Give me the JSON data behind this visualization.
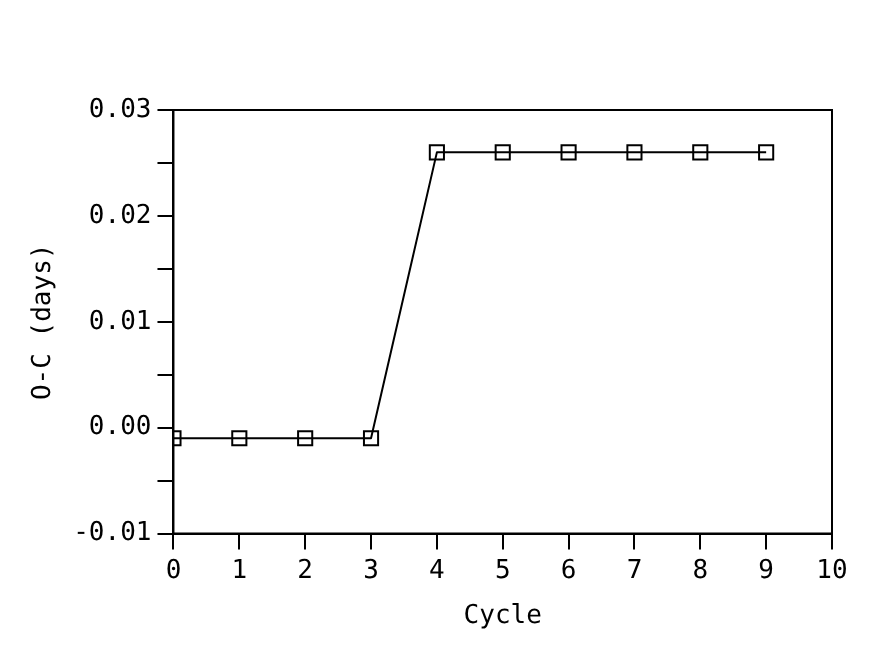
{
  "chart_data": {
    "type": "line",
    "xlabel": "Cycle",
    "ylabel": "O-C (days)",
    "x": [
      0,
      1,
      2,
      3,
      4,
      5,
      6,
      7,
      8,
      9
    ],
    "series": [
      {
        "color": "#000000",
        "values": [
          -0.001,
          -0.001,
          -0.001,
          -0.001,
          0.026,
          0.026,
          0.026,
          0.026,
          0.026,
          0.026
        ]
      }
    ],
    "xlim": [
      0,
      10
    ],
    "xticks": [
      0,
      1,
      2,
      3,
      4,
      5,
      6,
      7,
      8,
      9,
      10
    ],
    "ylim": [
      -0.01,
      0.03
    ],
    "yticks": [
      -0.01,
      {
        "value": -0.005,
        "label": null
      },
      "0.00",
      {
        "value": 0.005,
        "label": null
      },
      0.01,
      {
        "value": 0.015,
        "label": null
      },
      0.02,
      {
        "value": 0.025,
        "label": null
      },
      0.03
    ],
    "grid": false,
    "legend": false,
    "marker": "square",
    "line_style": "solid"
  }
}
